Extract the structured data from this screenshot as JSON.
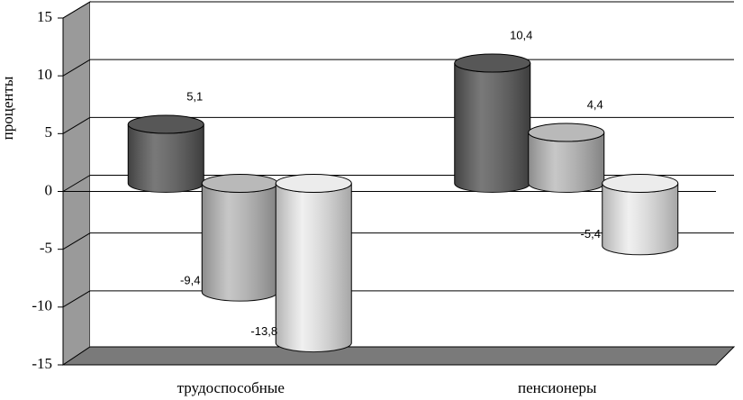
{
  "chart_data": {
    "type": "cylinder-bar",
    "y_label": "проценты",
    "categories": [
      "трудоспособные",
      "пенсионеры"
    ],
    "series": [
      {
        "color": "#575757",
        "values": [
          5.1,
          10.4
        ],
        "value_labels": [
          "5,1",
          "10,4"
        ]
      },
      {
        "color": "#b9b9b9",
        "values": [
          -9.4,
          4.4
        ],
        "value_labels": [
          "-9,4",
          "4,4"
        ]
      },
      {
        "color": "#ececec",
        "values": [
          -13.8,
          -5.4
        ],
        "value_labels": [
          "-13,8",
          "-5,4"
        ]
      }
    ],
    "ylim": [
      -15,
      15
    ],
    "yticks": [
      -15,
      -10,
      -5,
      0,
      5,
      10,
      15
    ],
    "grid": true
  }
}
